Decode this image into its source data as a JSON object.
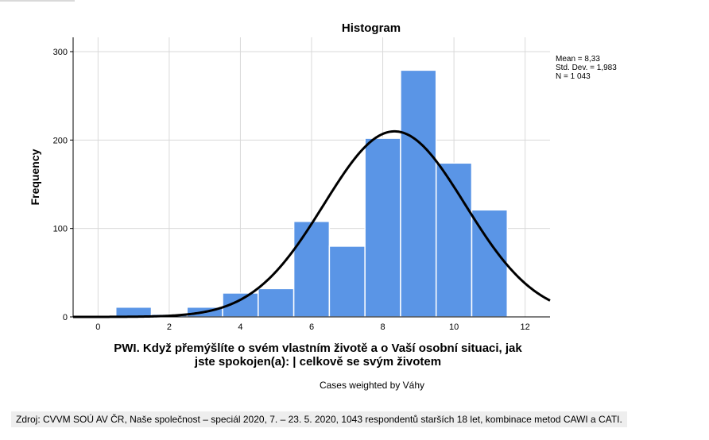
{
  "chart_data": {
    "type": "bar",
    "title": "Histogram",
    "ylabel": "Frequency",
    "xlabel_lines": [
      "PWI. Když přemýšlíte o svém vlastním životě a o Vaší osobní situaci, jak",
      "jste spokojen(a): | celkově se svým životem"
    ],
    "note": "Cases weighted by Váhy",
    "xlim": [
      -0.7,
      12.7
    ],
    "ylim": [
      0,
      300
    ],
    "xticks": [
      "0",
      "2",
      "4",
      "6",
      "8",
      "10",
      "12"
    ],
    "yticks": [
      "0",
      "100",
      "200",
      "300"
    ],
    "bins": [
      {
        "x": 0,
        "value": 0
      },
      {
        "x": 1,
        "value": 11
      },
      {
        "x": 2,
        "value": 3
      },
      {
        "x": 3,
        "value": 11
      },
      {
        "x": 4,
        "value": 27
      },
      {
        "x": 5,
        "value": 32
      },
      {
        "x": 6,
        "value": 108
      },
      {
        "x": 7,
        "value": 80
      },
      {
        "x": 8,
        "value": 202
      },
      {
        "x": 9,
        "value": 279
      },
      {
        "x": 10,
        "value": 174
      },
      {
        "x": 11,
        "value": 121
      }
    ],
    "bar_width": 1,
    "normal_curve": {
      "mean": 8.33,
      "sd": 1.983,
      "n": 1043
    },
    "stats_lines": [
      "Mean = 8,33",
      "Std. Dev. = 1,983",
      "N = 1 043"
    ],
    "grid": true,
    "colors": {
      "bar": "#5a95e6",
      "bar_edge": "#ffffff",
      "curve": "#000000",
      "grid": "#d9d9d9"
    }
  },
  "source_note": "Zdroj: CVVM SOÚ AV ČR, Naše společnost – speciál 2020, 7. – 23. 5. 2020, 1043 respondentů starších 18 let, kombinace metod CAWI a CATI."
}
